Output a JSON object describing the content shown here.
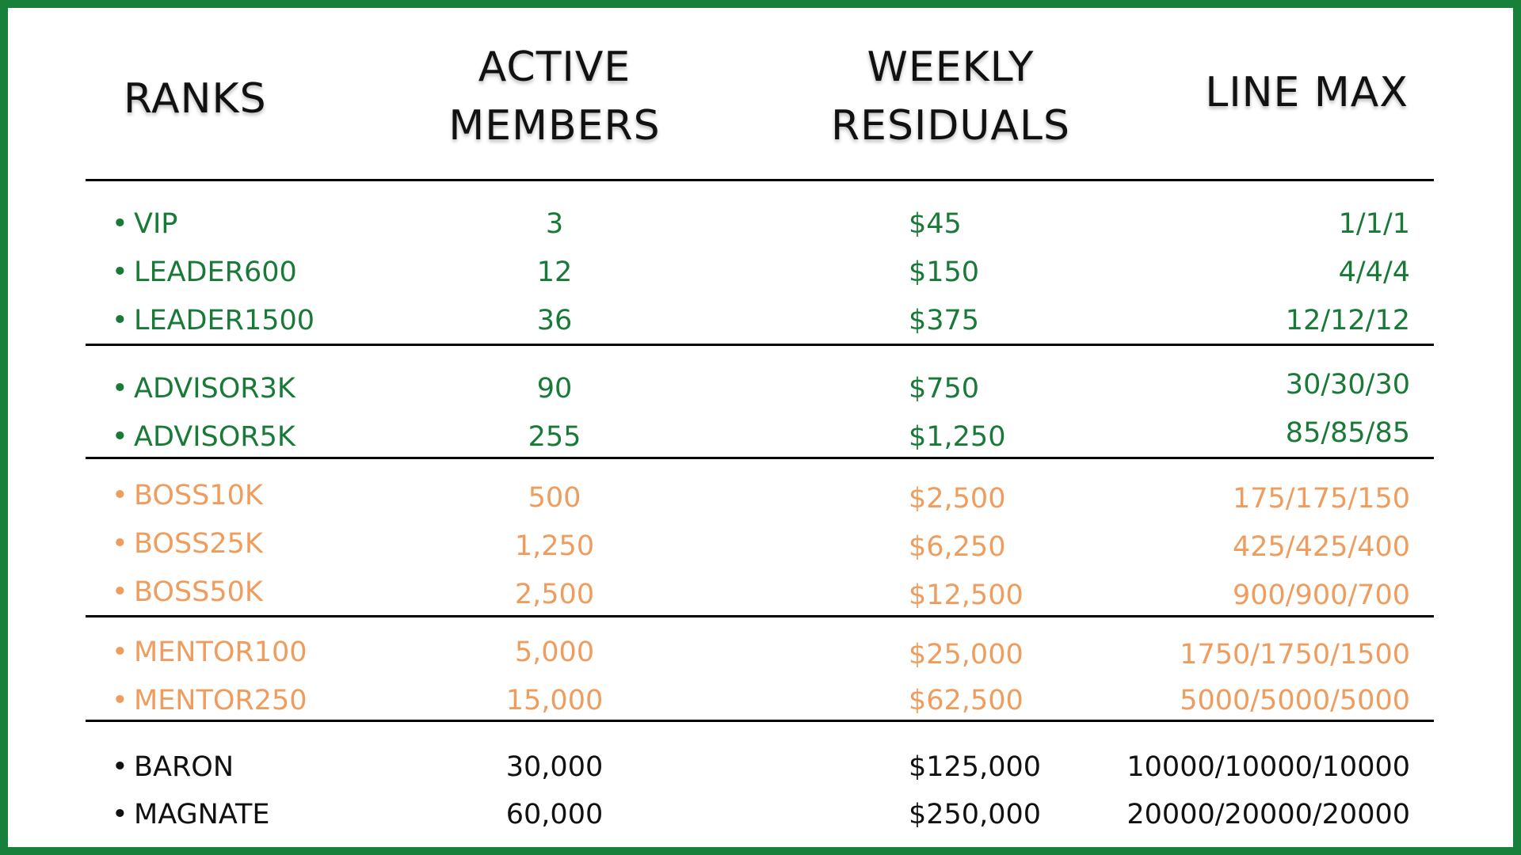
{
  "headers": {
    "ranks": "RANKS",
    "active_line1": "ACTIVE",
    "active_line2": "MEMBERS",
    "weekly_line1": "WEEKLY",
    "weekly_line2": "RESIDUALS",
    "line_max": "LINE MAX"
  },
  "rows": [
    {
      "rank": "VIP",
      "active": "3",
      "weekly": "$45",
      "line_max": "1/1/1"
    },
    {
      "rank": "LEADER600",
      "active": "12",
      "weekly": "$150",
      "line_max": "4/4/4"
    },
    {
      "rank": "LEADER1500",
      "active": "36",
      "weekly": "$375",
      "line_max": "12/12/12"
    },
    {
      "rank": "ADVISOR3K",
      "active": "90",
      "weekly": "$750",
      "line_max": "30/30/30"
    },
    {
      "rank": "ADVISOR5K",
      "active": "255",
      "weekly": "$1,250",
      "line_max": "85/85/85"
    },
    {
      "rank": "BOSS10K",
      "active": "500",
      "weekly": "$2,500",
      "line_max": "175/175/150"
    },
    {
      "rank": "BOSS25K",
      "active": "1,250",
      "weekly": "$6,250",
      "line_max": "425/425/400"
    },
    {
      "rank": "BOSS50K",
      "active": "2,500",
      "weekly": "$12,500",
      "line_max": "900/900/700"
    },
    {
      "rank": "MENTOR100",
      "active": "5,000",
      "weekly": "$25,000",
      "line_max": "1750/1750/1500"
    },
    {
      "rank": "MENTOR250",
      "active": "15,000",
      "weekly": "$62,500",
      "line_max": "5000/5000/5000"
    },
    {
      "rank": "BARON",
      "active": "30,000",
      "weekly": "$125,000",
      "line_max": "10000/10000/10000"
    },
    {
      "rank": "MAGNATE",
      "active": "60,000",
      "weekly": "$250,000",
      "line_max": "20000/20000/20000"
    }
  ],
  "colors": {
    "border": "#17803a",
    "green": "#197a38",
    "orange": "#ef9d5e",
    "black": "#111111"
  }
}
